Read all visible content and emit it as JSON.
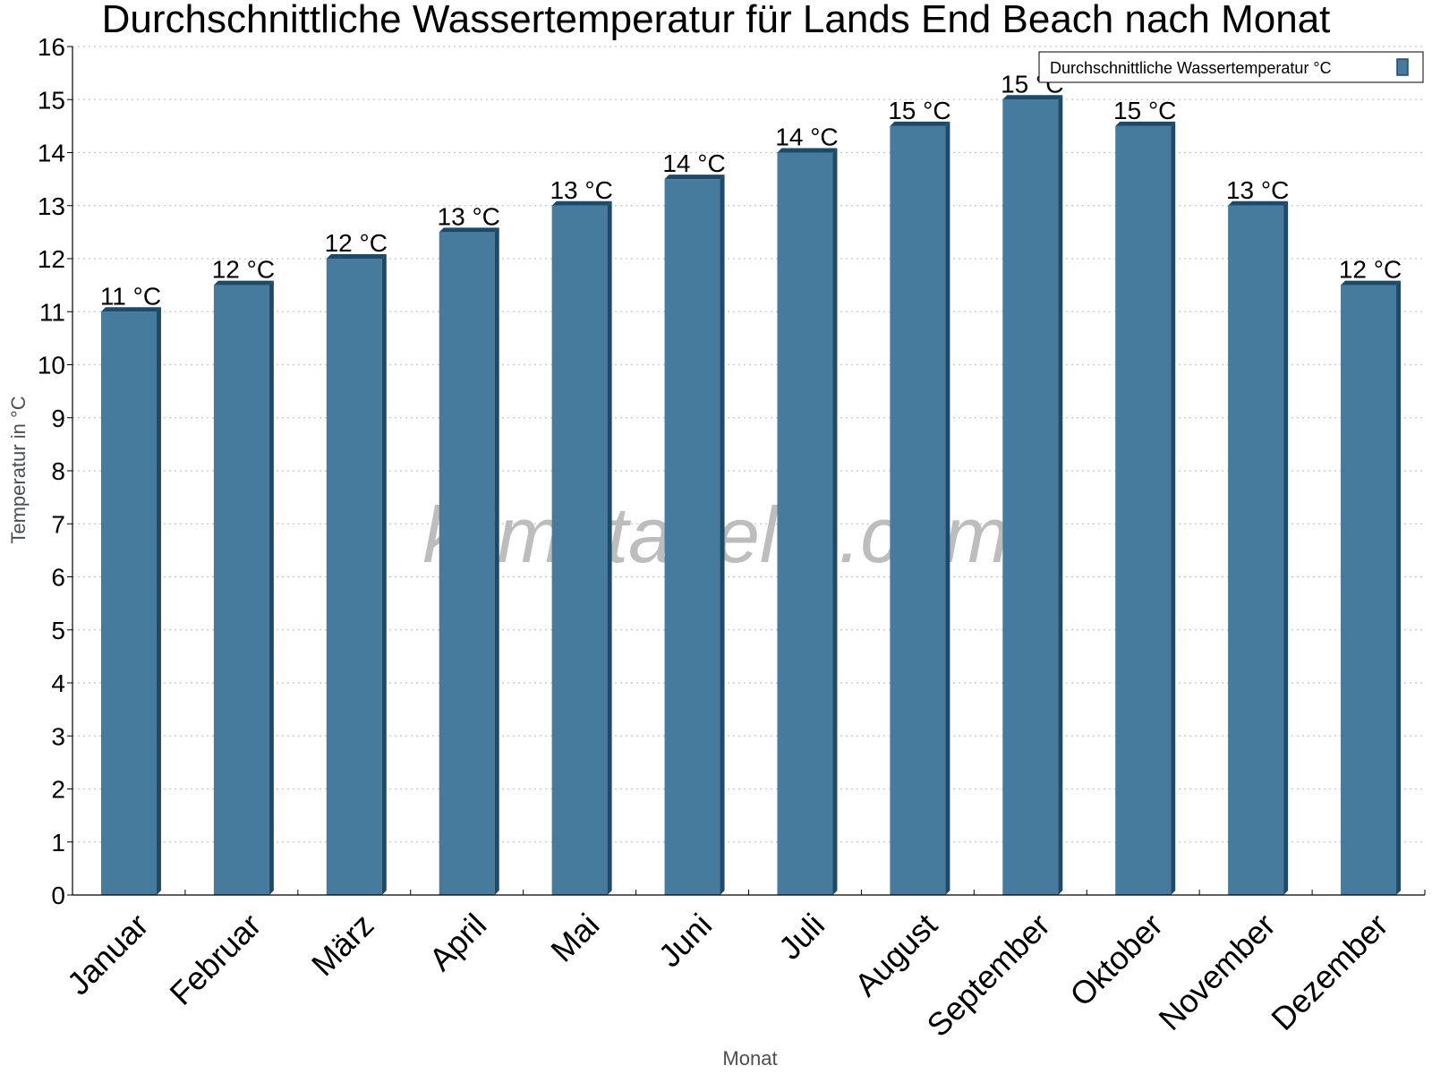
{
  "chart_data": {
    "type": "bar",
    "title": "Durchschnittliche Wassertemperatur für Lands End Beach nach Monat",
    "xlabel": "Monat",
    "ylabel": "Temperatur in °C",
    "categories": [
      "Januar",
      "Februar",
      "März",
      "April",
      "Mai",
      "Juni",
      "Juli",
      "August",
      "September",
      "Oktober",
      "November",
      "Dezember"
    ],
    "series": [
      {
        "name": "Durchschnittliche Wassertemperatur °C",
        "values": [
          11,
          11.5,
          12,
          12.5,
          13,
          13.5,
          14,
          14.5,
          15,
          14.5,
          13,
          11.5
        ],
        "labels": [
          "11 °C",
          "12 °C",
          "12 °C",
          "13 °C",
          "13 °C",
          "14 °C",
          "14 °C",
          "15 °C",
          "15 °C",
          "15 °C",
          "13 °C",
          "12 °C"
        ]
      }
    ],
    "ylim": [
      0,
      16
    ],
    "yticks": [
      "0",
      "1",
      "2",
      "3",
      "4",
      "5",
      "6",
      "7",
      "8",
      "9",
      "10",
      "11",
      "12",
      "13",
      "14",
      "15",
      "16"
    ],
    "grid": "horizontal dotted",
    "legend_position": "top-right",
    "colors": {
      "bar": "#467b9d",
      "bar_edge": "#1c4a6b"
    },
    "watermark": "klimatabelle.com"
  }
}
